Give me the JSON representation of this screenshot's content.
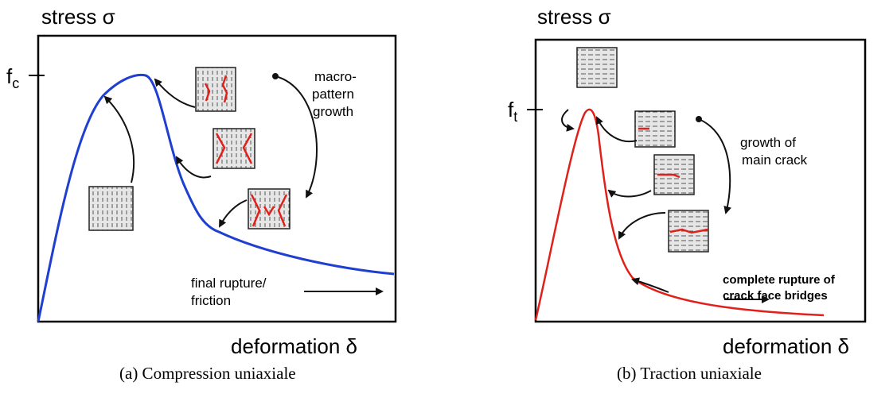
{
  "panels": [
    {
      "y_label": "stress σ",
      "x_label": "deformation δ",
      "tick_label": {
        "main": "f",
        "sub": "c"
      },
      "annotations": [
        [
          "macro-",
          "pattern",
          "growth"
        ],
        [
          "final rupture/",
          "friction"
        ]
      ],
      "caption": "(a) Compression uniaxiale"
    },
    {
      "y_label": "stress σ",
      "x_label": "deformation δ",
      "tick_label": {
        "main": "f",
        "sub": "t"
      },
      "annotations": [
        [
          "growth of",
          "main crack"
        ],
        [
          "complete rupture of",
          "crack face bridges"
        ]
      ],
      "caption": "(b) Traction uniaxiale"
    }
  ]
}
